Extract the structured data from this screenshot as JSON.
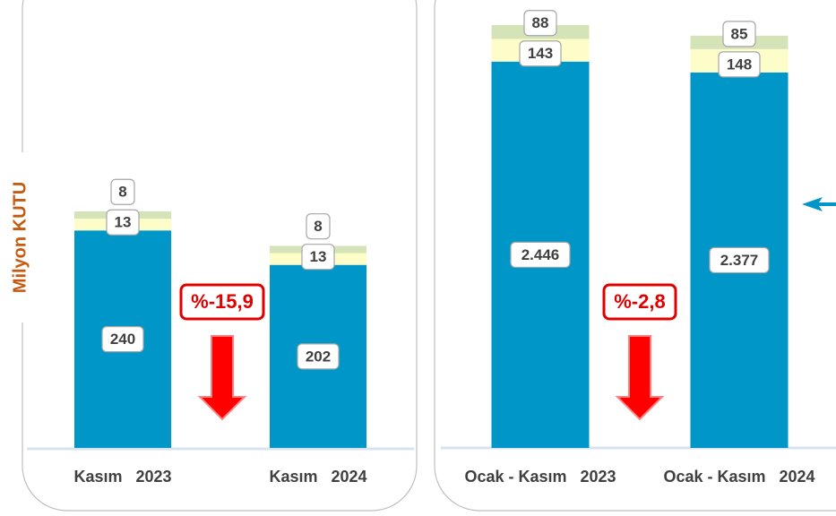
{
  "y_axis_label": "Milyon KUTU",
  "chart_data": [
    {
      "type": "stacked-bar",
      "categories": [
        "Kasım   2023",
        "Kasım   2024"
      ],
      "series": [
        {
          "color": "#0096c8",
          "values": [
            240,
            202
          ]
        },
        {
          "color": "#fdfdc9",
          "values": [
            13,
            13
          ]
        },
        {
          "color": "#d5e3b9",
          "values": [
            8,
            8
          ]
        }
      ],
      "annotation": "%-15,9"
    },
    {
      "type": "stacked-bar",
      "categories": [
        "Ocak - Kasım   2023",
        "Ocak - Kasım   2024"
      ],
      "series": [
        {
          "color": "#0096c8",
          "values": [
            2446,
            2377
          ],
          "value_labels": [
            "2.446",
            "2.377"
          ]
        },
        {
          "color": "#fdfdc9",
          "values": [
            143,
            148
          ]
        },
        {
          "color": "#d5e3b9",
          "values": [
            88,
            85
          ]
        }
      ],
      "annotation": "%-2,8"
    }
  ]
}
